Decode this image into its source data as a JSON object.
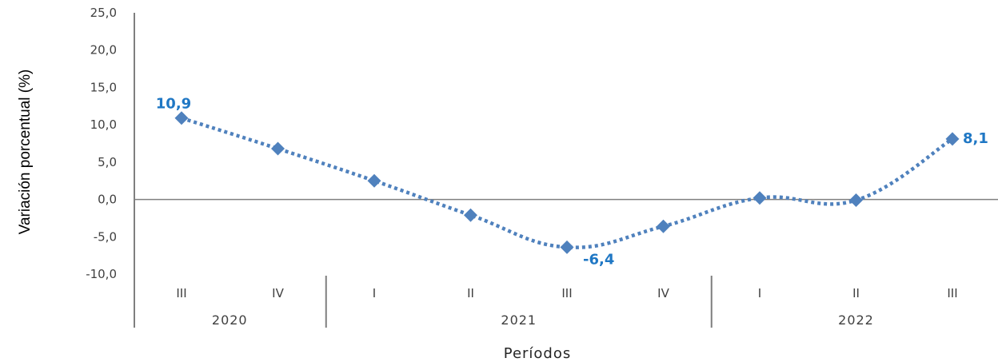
{
  "chart_data": {
    "type": "line",
    "title": "",
    "xlabel": "Períodos",
    "ylabel": "Variación porcentual (%)",
    "ylim": [
      -10,
      25
    ],
    "yticks": [
      "25,0",
      "20,0",
      "15,0",
      "10,0",
      "5,0",
      "0,0",
      "-5,0",
      "-10,0"
    ],
    "ytick_values": [
      25,
      20,
      15,
      10,
      5,
      0,
      -5,
      -10
    ],
    "categories": [
      "III",
      "IV",
      "I",
      "II",
      "III",
      "IV",
      "I",
      "II",
      "III"
    ],
    "groups": [
      {
        "label": "2020",
        "count": 2
      },
      {
        "label": "2021",
        "count": 4
      },
      {
        "label": "2022",
        "count": 3
      }
    ],
    "series": [
      {
        "values": [
          10.9,
          6.8,
          2.5,
          -2.1,
          -6.4,
          -3.6,
          0.2,
          -0.1,
          8.1
        ]
      }
    ],
    "data_labels": [
      {
        "index": 0,
        "text": "10,9"
      },
      {
        "index": 4,
        "text": "-6,4"
      },
      {
        "index": 8,
        "text": "8,1"
      }
    ],
    "grid": false,
    "colors": {
      "line": "#4F81BD",
      "marker": "#4F81BD",
      "label": "#1F77C4",
      "axis": "#7F7F7F"
    }
  }
}
